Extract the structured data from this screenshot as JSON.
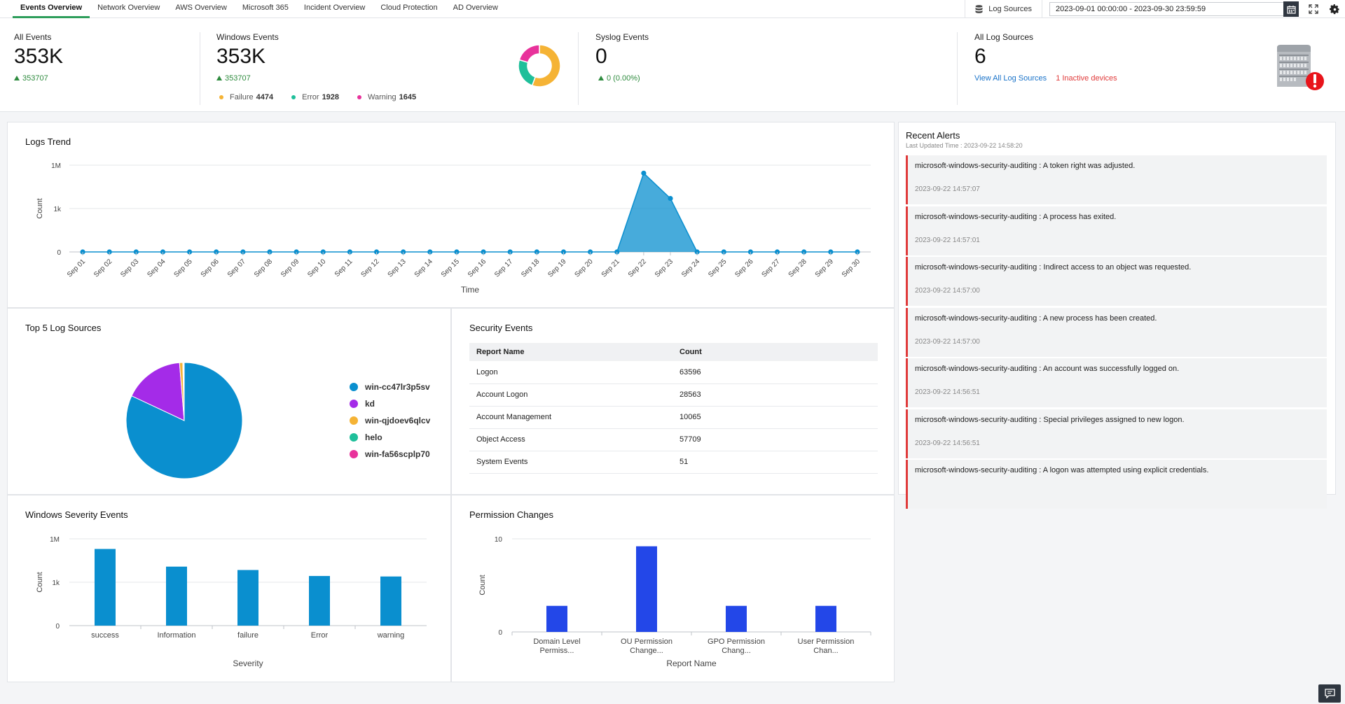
{
  "tabs": [
    "Events Overview",
    "Network Overview",
    "AWS Overview",
    "Microsoft 365",
    "Incident Overview",
    "Cloud Protection",
    "AD Overview"
  ],
  "active_tab": 0,
  "toolbar": {
    "log_sources_label": "Log Sources",
    "date_range": "2023-09-01 00:00:00 - 2023-09-30 23:59:59"
  },
  "summary": {
    "all_events": {
      "label": "All Events",
      "value": "353K",
      "delta": "353707"
    },
    "windows_events": {
      "label": "Windows Events",
      "value": "353K",
      "delta": "353707",
      "legend": [
        {
          "name": "Failure",
          "count": "4474",
          "color": "#f5b335"
        },
        {
          "name": "Error",
          "count": "1928",
          "color": "#1fbf9a"
        },
        {
          "name": "Warning",
          "count": "1645",
          "color": "#e8329b"
        }
      ],
      "donut": [
        {
          "name": "Failure",
          "value": 4474,
          "color": "#f5b335"
        },
        {
          "name": "Error",
          "value": 1928,
          "color": "#1fbf9a"
        },
        {
          "name": "Warning",
          "value": 1645,
          "color": "#e8329b"
        }
      ]
    },
    "syslog_events": {
      "label": "Syslog Events",
      "value": "0",
      "delta": "0 (0.00%)"
    },
    "all_log_sources": {
      "label": "All Log Sources",
      "value": "6",
      "view_all_link": "View All Log Sources",
      "inactive_link": "1 Inactive devices"
    }
  },
  "logs_trend": {
    "title": "Logs Trend",
    "chart_data": {
      "type": "area",
      "xlabel": "Time",
      "ylabel": "Count",
      "yticks": [
        "0",
        "1k",
        "1M"
      ],
      "categories": [
        "Sep 01",
        "Sep 02",
        "Sep 03",
        "Sep 04",
        "Sep 05",
        "Sep 06",
        "Sep 07",
        "Sep 08",
        "Sep 09",
        "Sep 10",
        "Sep 11",
        "Sep 12",
        "Sep 13",
        "Sep 14",
        "Sep 15",
        "Sep 16",
        "Sep 17",
        "Sep 18",
        "Sep 19",
        "Sep 20",
        "Sep 21",
        "Sep 22",
        "Sep 23",
        "Sep 24",
        "Sep 25",
        "Sep 26",
        "Sep 27",
        "Sep 28",
        "Sep 29",
        "Sep 30"
      ],
      "values": [
        0,
        0,
        0,
        0,
        0,
        0,
        0,
        0,
        0,
        0,
        0,
        0,
        0,
        0,
        0,
        0,
        0,
        0,
        0,
        0,
        0,
        280000,
        5000,
        0,
        0,
        0,
        0,
        0,
        0,
        0
      ],
      "color": "#0a8fcf",
      "log_scale": true
    }
  },
  "top_sources": {
    "title": "Top 5 Log Sources",
    "chart_data": {
      "type": "pie",
      "labels": [
        "win-cc47lr3p5sv",
        "kd",
        "win-qjdoev6qlcv",
        "helo",
        "win-fa56scplp70"
      ],
      "values": [
        82.0,
        16.7,
        0.9,
        0.2,
        0.2
      ],
      "colors": [
        "#0a8fcf",
        "#a42be8",
        "#f5b335",
        "#1fbf9a",
        "#e8329b"
      ]
    }
  },
  "security_events": {
    "title": "Security Events",
    "headers": [
      "Report Name",
      "Count"
    ],
    "rows": [
      [
        "Logon",
        "63596"
      ],
      [
        "Account Logon",
        "28563"
      ],
      [
        "Account Management",
        "10065"
      ],
      [
        "Object Access",
        "57709"
      ],
      [
        "System Events",
        "51"
      ]
    ]
  },
  "recent_alerts": {
    "title": "Recent Alerts",
    "updated": "Last Updated Time : 2023-09-22 14:58:20",
    "items": [
      {
        "text": "microsoft-windows-security-auditing : A token right was adjusted.",
        "time": "2023-09-22 14:57:07"
      },
      {
        "text": "microsoft-windows-security-auditing : A process has exited.",
        "time": "2023-09-22 14:57:01"
      },
      {
        "text": "microsoft-windows-security-auditing : Indirect access to an object was requested.",
        "time": "2023-09-22 14:57:00"
      },
      {
        "text": "microsoft-windows-security-auditing : A new process has been created.",
        "time": "2023-09-22 14:57:00"
      },
      {
        "text": "microsoft-windows-security-auditing : An account was successfully logged on.",
        "time": "2023-09-22 14:56:51"
      },
      {
        "text": "microsoft-windows-security-auditing : Special privileges assigned to new logon.",
        "time": "2023-09-22 14:56:51"
      },
      {
        "text": "microsoft-windows-security-auditing : A logon was attempted using explicit credentials.",
        "time": ""
      }
    ]
  },
  "windows_severity": {
    "title": "Windows Severity Events",
    "chart_data": {
      "type": "bar",
      "categories": [
        "success",
        "Information",
        "failure",
        "Error",
        "warning"
      ],
      "values": [
        200000,
        12000,
        7000,
        2700,
        2500
      ],
      "xlabel": "Severity",
      "ylabel": "Count",
      "yticks": [
        "0",
        "1k",
        "1M"
      ],
      "log_scale": true,
      "color": "#0a8fcf"
    }
  },
  "permission_changes": {
    "title": "Permission Changes",
    "chart_data": {
      "type": "bar",
      "categories": [
        "Domain Level Permiss...",
        "OU Permission Change...",
        "GPO Permission Chang...",
        "User Permission Chan..."
      ],
      "values": [
        2.8,
        9.2,
        2.8,
        2.8
      ],
      "xlabel": "Report Name",
      "ylabel": "Count",
      "yticks": [
        "0",
        "10"
      ],
      "ylim": [
        0,
        10
      ],
      "color": "#2347e8"
    }
  }
}
